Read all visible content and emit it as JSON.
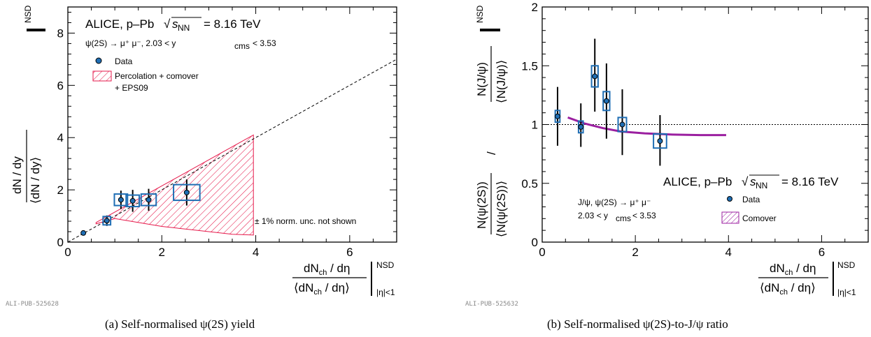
{
  "panel_a": {
    "collaboration": "ALICE, p–Pb",
    "energy": "= 8.16 TeV",
    "channel": "ψ(2S) → μ⁺ μ⁻, 2.03 < y",
    "channel_sub": "cms",
    "channel_end": "< 3.53",
    "legend_data": "Data",
    "legend_model_line1": "Percolation + comover",
    "legend_model_line2": "+ EPS09",
    "norm_note": "± 1% norm. unc. not shown",
    "pub_id": "ALI-PUB-525628",
    "caption": "(a)  Self-normalised ψ(2S) yield",
    "nsd_label": "NSD",
    "eta_label": "|η|<1"
  },
  "panel_b": {
    "collaboration": "ALICE, p–Pb",
    "energy": "= 8.16 TeV",
    "channel_line1": "J/ψ, ψ(2S) → μ⁺ μ⁻",
    "channel_line2": "2.03 < y",
    "channel_sub": "cms",
    "channel_end": "< 3.53",
    "legend_data": "Data",
    "legend_model": "Comover",
    "pub_id": "ALI-PUB-525632",
    "caption": "(b)  Self-normalised ψ(2S)-to-J/ψ ratio",
    "nsd_label": "NSD",
    "eta_label": "|η|<1"
  },
  "chart_data": [
    {
      "type": "scatter",
      "xlim": [
        0,
        7
      ],
      "ylim": [
        0,
        9
      ],
      "x_ticks": [
        0,
        2,
        4,
        6
      ],
      "y_ticks": [
        0,
        2,
        4,
        6,
        8
      ],
      "series": [
        {
          "name": "Data",
          "x": [
            0.33,
            0.83,
            1.13,
            1.38,
            1.72,
            2.53
          ],
          "y": [
            0.35,
            0.82,
            1.62,
            1.58,
            1.62,
            1.9
          ],
          "yerr": [
            0.05,
            0.2,
            0.35,
            0.42,
            0.42,
            0.5
          ],
          "syst_w": [
            0,
            0.08,
            0.14,
            0.14,
            0.16,
            0.28
          ],
          "syst_h": [
            0,
            0.16,
            0.22,
            0.22,
            0.22,
            0.3
          ]
        }
      ],
      "model_band": {
        "name": "Percolation + comover + EPS09",
        "x": [
          0.6,
          1.0,
          1.5,
          2.0,
          2.5,
          3.0,
          3.5,
          3.95
        ],
        "upper": [
          0.75,
          1.15,
          1.65,
          2.15,
          2.65,
          3.15,
          3.65,
          4.1
        ],
        "lower": [
          0.7,
          0.9,
          0.75,
          0.6,
          0.5,
          0.4,
          0.3,
          0.27
        ]
      },
      "reference_line": {
        "slope": 1,
        "style": "dashed"
      },
      "legend": "top-left",
      "color": "#1f6eb4",
      "band_color": "#e6194b"
    },
    {
      "type": "scatter",
      "xlim": [
        0,
        7
      ],
      "ylim": [
        0,
        2
      ],
      "x_ticks": [
        0,
        2,
        4,
        6
      ],
      "y_ticks": [
        0,
        0.5,
        1,
        1.5,
        2
      ],
      "y_tick_labels": [
        "0",
        "0.5",
        "1",
        "1.5",
        "2"
      ],
      "series": [
        {
          "name": "Data",
          "x": [
            0.33,
            0.83,
            1.13,
            1.38,
            1.72,
            2.53
          ],
          "y": [
            1.07,
            0.98,
            1.41,
            1.2,
            1.0,
            0.86
          ],
          "yerr_up": [
            0.25,
            0.2,
            0.32,
            0.32,
            0.3,
            0.22
          ],
          "yerr_dn": [
            0.25,
            0.17,
            0.3,
            0.32,
            0.26,
            0.21
          ],
          "syst_w": [
            0.05,
            0.05,
            0.07,
            0.07,
            0.09,
            0.14
          ],
          "syst_h": [
            0.05,
            0.05,
            0.09,
            0.08,
            0.06,
            0.06
          ]
        }
      ],
      "model_curve": {
        "name": "Comover",
        "x": [
          0.55,
          0.9,
          1.3,
          1.7,
          2.2,
          2.8,
          3.4,
          3.95
        ],
        "y": [
          1.06,
          1.01,
          0.97,
          0.94,
          0.925,
          0.915,
          0.91,
          0.91
        ]
      },
      "reference_line": {
        "y": 1,
        "style": "dotted"
      },
      "legend": "bottom-right",
      "color": "#1f6eb4",
      "curve_color": "#9b1fa0"
    }
  ]
}
